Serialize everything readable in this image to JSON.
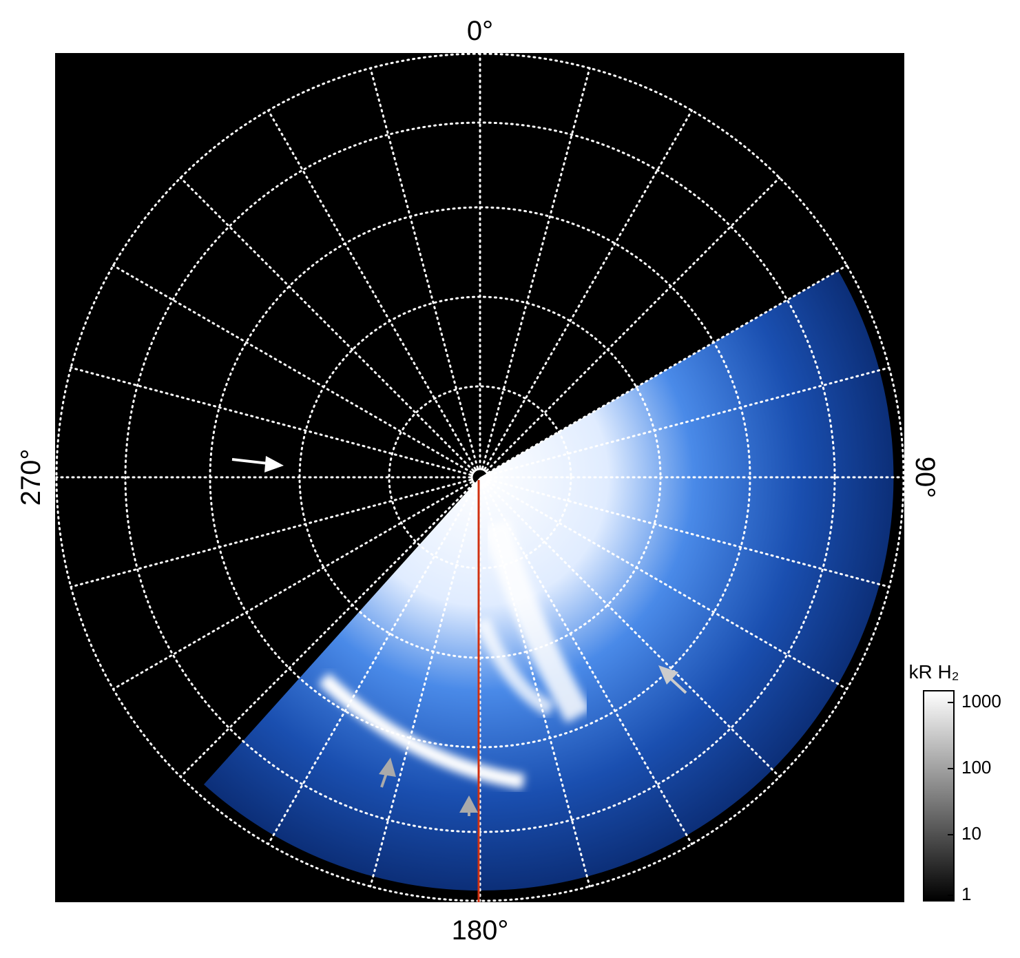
{
  "labels": {
    "top": "0°",
    "right": "90°",
    "bottom": "180°",
    "left": "270°"
  },
  "colorbar": {
    "title": "kR H₂",
    "ticks": [
      "1000",
      "100",
      "10",
      "1"
    ]
  }
}
